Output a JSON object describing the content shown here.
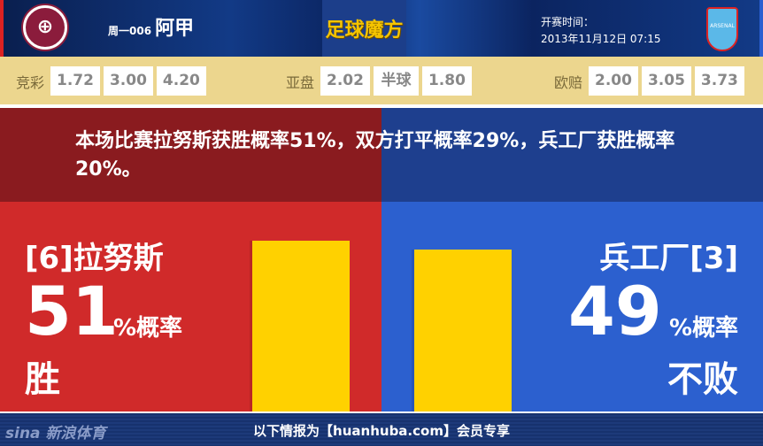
{
  "header": {
    "home_logo": "拉努斯",
    "match_code": "周一006",
    "league": "阿甲",
    "brand": "足球魔方",
    "kickoff_label": "开赛时间：",
    "kickoff_time": "2013年11月12日 07:15",
    "away_logo": "ARSENAL F.C."
  },
  "odds": {
    "jingcai": {
      "label": "竞彩",
      "values": [
        "1.72",
        "3.00",
        "4.20"
      ]
    },
    "yapan": {
      "label": "亚盘",
      "values": [
        "2.02",
        "半球",
        "1.80"
      ]
    },
    "oupei": {
      "label": "欧赔",
      "values": [
        "2.00",
        "3.05",
        "3.73"
      ]
    }
  },
  "summary": "本场比赛拉努斯获胜概率51%，双方打平概率29%，兵工厂获胜概率20%。",
  "home": {
    "team": "[6]拉努斯",
    "percent": "51",
    "percent_label": "%概率",
    "result": "胜",
    "color": "#d02a2a",
    "bar_value": 51
  },
  "away": {
    "team": "兵工厂[3]",
    "percent": "49",
    "percent_label": "%概率",
    "result": "不败",
    "color": "#2c60cf",
    "bar_value": 49
  },
  "footer": {
    "logo": "sina新浪体育",
    "text": "以下情报为【huanhuba.com】会员专享"
  }
}
